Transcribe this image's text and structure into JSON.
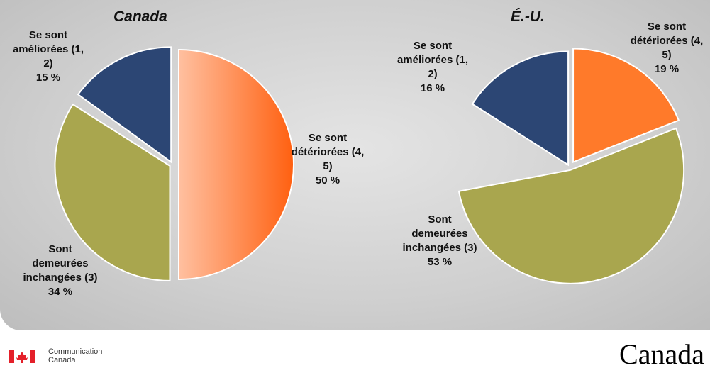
{
  "chart_data": [
    {
      "type": "pie",
      "title": "Canada",
      "categories": [
        "Se sont détériorées (4, 5)",
        "Sont demeurées inchangées (3)",
        "Se sont améliorées (1, 2)"
      ],
      "values": [
        50,
        34,
        15
      ],
      "value_labels": [
        "50 %",
        "34 %",
        "15 %"
      ],
      "colors": [
        "#ff7a2a",
        "#a9a64e",
        "#2c4674"
      ]
    },
    {
      "type": "pie",
      "title": "É.-U.",
      "categories": [
        "Se sont détériorées (4, 5)",
        "Sont demeurées inchangées (3)",
        "Se sont améliorées (1, 2)"
      ],
      "values": [
        19,
        53,
        16
      ],
      "value_labels": [
        "19 %",
        "53 %",
        "16 %"
      ],
      "colors": [
        "#ff7a2a",
        "#a9a64e",
        "#2c4674"
      ]
    }
  ],
  "footer": {
    "department": "Communication Canada",
    "wordmark": "Canada"
  }
}
